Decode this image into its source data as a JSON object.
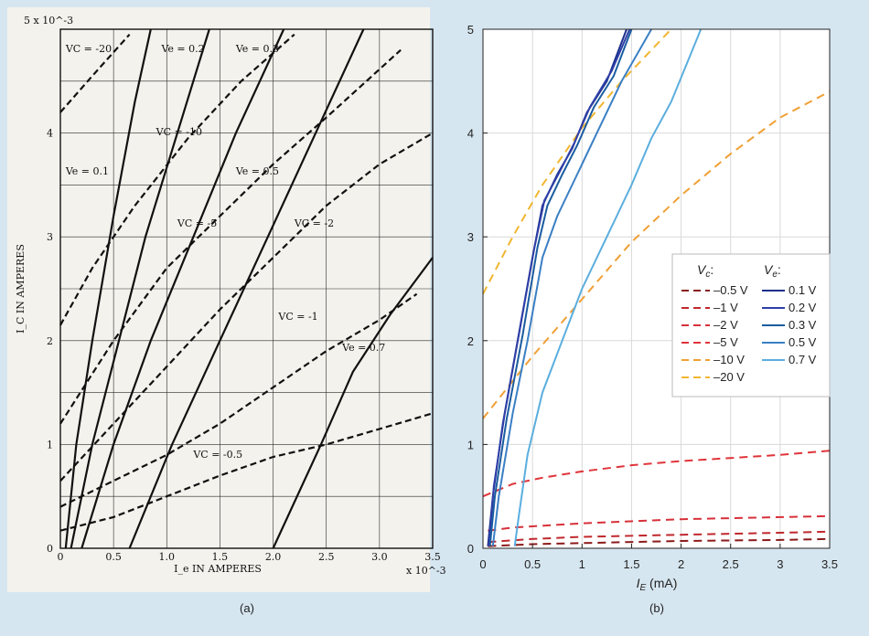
{
  "captions": {
    "a": "(a)",
    "b": "(b)"
  },
  "chart_data": [
    {
      "panel": "a",
      "type": "line",
      "xlabel": "I_e IN AMPERES",
      "ylabel": "I_C IN AMPERES",
      "x_scale_label": "x 10^-3",
      "y_scale_label": "5 x 10^-3",
      "xlim": [
        0,
        3.5
      ],
      "ylim": [
        0,
        5
      ],
      "x_ticks": [
        "0",
        "0.5",
        "1.0",
        "1.5",
        "2.0",
        "2.5",
        "3.0",
        "3.5"
      ],
      "y_ticks": [
        "0",
        "1",
        "2",
        "3",
        "4"
      ],
      "grid": true,
      "series": [
        {
          "name": "Ve = 0.1",
          "style": "solid",
          "color": "#111111",
          "points": [
            [
              0.05,
              0
            ],
            [
              0.15,
              1.0
            ],
            [
              0.3,
              2.0
            ],
            [
              0.5,
              3.2
            ],
            [
              0.7,
              4.3
            ],
            [
              0.85,
              5.0
            ]
          ]
        },
        {
          "name": "Ve = 0.2",
          "style": "solid",
          "color": "#111111",
          "points": [
            [
              0.1,
              0
            ],
            [
              0.3,
              1.0
            ],
            [
              0.55,
              2.0
            ],
            [
              0.8,
              3.0
            ],
            [
              1.1,
              4.0
            ],
            [
              1.4,
              5.0
            ]
          ]
        },
        {
          "name": "Ve = 0.3",
          "style": "solid",
          "color": "#111111",
          "points": [
            [
              0.2,
              0
            ],
            [
              0.5,
              1.0
            ],
            [
              0.85,
              2.0
            ],
            [
              1.25,
              3.0
            ],
            [
              1.65,
              4.0
            ],
            [
              2.1,
              5.0
            ]
          ]
        },
        {
          "name": "Ve = 0.5",
          "style": "solid",
          "color": "#111111",
          "points": [
            [
              0.65,
              0
            ],
            [
              1.05,
              1.0
            ],
            [
              1.5,
              2.0
            ],
            [
              1.95,
              3.0
            ],
            [
              2.4,
              4.0
            ],
            [
              2.85,
              5.0
            ]
          ]
        },
        {
          "name": "Ve = 0.7",
          "style": "solid",
          "color": "#111111",
          "points": [
            [
              2.0,
              0
            ],
            [
              2.45,
              1.0
            ],
            [
              2.75,
              1.7
            ],
            [
              3.1,
              2.25
            ],
            [
              3.5,
              2.8
            ]
          ]
        },
        {
          "name": "Vc = -20",
          "style": "dashed",
          "color": "#111111",
          "points": [
            [
              0,
              4.2
            ],
            [
              0.3,
              4.55
            ],
            [
              0.65,
              4.95
            ]
          ]
        },
        {
          "name": "Vc = -10",
          "style": "dashed",
          "color": "#111111",
          "points": [
            [
              0,
              2.15
            ],
            [
              0.3,
              2.7
            ],
            [
              0.7,
              3.3
            ],
            [
              1.2,
              3.95
            ],
            [
              1.7,
              4.5
            ],
            [
              2.2,
              4.95
            ]
          ]
        },
        {
          "name": "Vc = -5",
          "style": "dashed",
          "color": "#111111",
          "points": [
            [
              0,
              1.2
            ],
            [
              0.5,
              2.0
            ],
            [
              1.0,
              2.7
            ],
            [
              1.5,
              3.2
            ],
            [
              2.0,
              3.7
            ],
            [
              2.5,
              4.15
            ],
            [
              3.2,
              4.8
            ]
          ]
        },
        {
          "name": "Vc = -2",
          "style": "dashed",
          "color": "#111111",
          "points": [
            [
              0,
              0.65
            ],
            [
              0.5,
              1.2
            ],
            [
              1.0,
              1.75
            ],
            [
              1.5,
              2.3
            ],
            [
              2.0,
              2.8
            ],
            [
              2.5,
              3.3
            ],
            [
              3.0,
              3.7
            ],
            [
              3.5,
              4.0
            ]
          ]
        },
        {
          "name": "Vc = -1",
          "style": "dashed",
          "color": "#111111",
          "points": [
            [
              0,
              0.4
            ],
            [
              0.5,
              0.65
            ],
            [
              1.0,
              0.9
            ],
            [
              1.5,
              1.2
            ],
            [
              2.0,
              1.55
            ],
            [
              2.5,
              1.9
            ],
            [
              3.0,
              2.2
            ],
            [
              3.35,
              2.45
            ]
          ]
        },
        {
          "name": "Vc = -0.5",
          "style": "dashed",
          "color": "#111111",
          "points": [
            [
              0,
              0.17
            ],
            [
              0.5,
              0.3
            ],
            [
              1.0,
              0.5
            ],
            [
              1.5,
              0.7
            ],
            [
              2.0,
              0.88
            ],
            [
              2.5,
              1.0
            ],
            [
              3.0,
              1.15
            ],
            [
              3.5,
              1.3
            ]
          ]
        }
      ],
      "annotations": [
        {
          "text": "VC = -20",
          "x": 0.05,
          "y": 4.78
        },
        {
          "text": "Ve = 0.2",
          "x": 0.95,
          "y": 4.78
        },
        {
          "text": "Ve = 0.3",
          "x": 1.65,
          "y": 4.78
        },
        {
          "text": "VC = -10",
          "x": 0.9,
          "y": 3.98
        },
        {
          "text": "Ve = 0.1",
          "x": 0.05,
          "y": 3.6
        },
        {
          "text": "Ve = 0.5",
          "x": 1.65,
          "y": 3.6
        },
        {
          "text": "VC = -5",
          "x": 1.1,
          "y": 3.1
        },
        {
          "text": "VC = -2",
          "x": 2.2,
          "y": 3.1
        },
        {
          "text": "VC = -1",
          "x": 2.05,
          "y": 2.2
        },
        {
          "text": "Ve = 0.7",
          "x": 2.65,
          "y": 1.9
        },
        {
          "text": "VC = -0.5",
          "x": 1.25,
          "y": 0.87
        }
      ]
    },
    {
      "panel": "b",
      "type": "line",
      "xlabel": "I_E (mA)",
      "ylabel": "",
      "xlim": [
        0,
        3.5
      ],
      "ylim": [
        0,
        5
      ],
      "x_ticks": [
        "0",
        "0.5",
        "1",
        "1.5",
        "2",
        "2.5",
        "3",
        "3.5"
      ],
      "y_ticks": [
        "0",
        "1",
        "2",
        "3",
        "4",
        "5"
      ],
      "grid": true,
      "legend": {
        "position": "right",
        "vc_header": "V_c:",
        "ve_header": "V_e:",
        "vc_entries": [
          {
            "label": "–0.5 V",
            "color": "#8b1a1a"
          },
          {
            "label": "–1 V",
            "color": "#c0282d"
          },
          {
            "label": "–2 V",
            "color": "#d7303a"
          },
          {
            "label": "–5 V",
            "color": "#e0343a"
          },
          {
            "label": "–10 V",
            "color": "#f0a035"
          },
          {
            "label": "–20 V",
            "color": "#f1b630"
          }
        ],
        "ve_entries": [
          {
            "label": "0.1 V",
            "color": "#1b2f8a"
          },
          {
            "label": "0.2 V",
            "color": "#2f3fa8"
          },
          {
            "label": "0.3 V",
            "color": "#1a5c9f"
          },
          {
            "label": "0.5 V",
            "color": "#3a7fc4"
          },
          {
            "label": "0.7 V",
            "color": "#5aaede"
          }
        ]
      },
      "series": [
        {
          "name": "Vc –0.5 V",
          "style": "dashed",
          "color": "#8b1a1a",
          "points": [
            [
              0.05,
              0.02
            ],
            [
              0.5,
              0.04
            ],
            [
              1,
              0.05
            ],
            [
              2,
              0.07
            ],
            [
              3,
              0.08
            ],
            [
              3.5,
              0.09
            ]
          ]
        },
        {
          "name": "Vc –1 V",
          "style": "dashed",
          "color": "#c0282d",
          "points": [
            [
              0.05,
              0.06
            ],
            [
              0.5,
              0.09
            ],
            [
              1,
              0.11
            ],
            [
              2,
              0.13
            ],
            [
              3,
              0.15
            ],
            [
              3.5,
              0.16
            ]
          ]
        },
        {
          "name": "Vc –2 V",
          "style": "dashed",
          "color": "#d7303a",
          "points": [
            [
              0.05,
              0.17
            ],
            [
              0.3,
              0.2
            ],
            [
              1,
              0.24
            ],
            [
              2,
              0.28
            ],
            [
              3,
              0.3
            ],
            [
              3.5,
              0.31
            ]
          ]
        },
        {
          "name": "Vc –5 V",
          "style": "dashed",
          "color": "#e0343a",
          "points": [
            [
              0,
              0.5
            ],
            [
              0.3,
              0.62
            ],
            [
              0.6,
              0.68
            ],
            [
              1,
              0.74
            ],
            [
              1.5,
              0.8
            ],
            [
              2,
              0.84
            ],
            [
              2.5,
              0.87
            ],
            [
              3,
              0.9
            ],
            [
              3.5,
              0.94
            ]
          ]
        },
        {
          "name": "Vc –10 V",
          "style": "dashed",
          "color": "#f0a035",
          "points": [
            [
              0,
              1.25
            ],
            [
              0.5,
              1.85
            ],
            [
              1,
              2.4
            ],
            [
              1.5,
              2.95
            ],
            [
              2,
              3.4
            ],
            [
              2.5,
              3.8
            ],
            [
              3,
              4.15
            ],
            [
              3.5,
              4.4
            ]
          ]
        },
        {
          "name": "Vc –20 V",
          "style": "dashed",
          "color": "#f1b630",
          "points": [
            [
              0,
              2.45
            ],
            [
              0.3,
              3.0
            ],
            [
              0.6,
              3.5
            ],
            [
              1,
              4.05
            ],
            [
              1.4,
              4.5
            ],
            [
              1.9,
              5.0
            ]
          ]
        },
        {
          "name": "Ve 0.1 V",
          "style": "solid",
          "color": "#1b2f8a",
          "points": [
            [
              0.05,
              0.02
            ],
            [
              0.1,
              0.5
            ],
            [
              0.2,
              1.2
            ],
            [
              0.35,
              2.0
            ],
            [
              0.5,
              2.8
            ],
            [
              0.6,
              3.3
            ],
            [
              0.75,
              3.6
            ],
            [
              0.9,
              3.85
            ],
            [
              1.05,
              4.2
            ],
            [
              1.25,
              4.5
            ],
            [
              1.45,
              5.0
            ]
          ]
        },
        {
          "name": "Ve 0.2 V",
          "style": "solid",
          "color": "#2f3fa8",
          "points": [
            [
              0.06,
              0.02
            ],
            [
              0.11,
              0.6
            ],
            [
              0.22,
              1.3
            ],
            [
              0.37,
              2.1
            ],
            [
              0.52,
              2.9
            ],
            [
              0.62,
              3.35
            ],
            [
              0.77,
              3.62
            ],
            [
              0.92,
              3.9
            ],
            [
              1.08,
              4.25
            ],
            [
              1.3,
              4.6
            ],
            [
              1.48,
              5.0
            ]
          ]
        },
        {
          "name": "Ve 0.3 V",
          "style": "solid",
          "color": "#1a5c9f",
          "points": [
            [
              0.07,
              0.02
            ],
            [
              0.12,
              0.5
            ],
            [
              0.24,
              1.25
            ],
            [
              0.4,
              2.05
            ],
            [
              0.55,
              2.9
            ],
            [
              0.65,
              3.3
            ],
            [
              0.8,
              3.6
            ],
            [
              0.95,
              3.88
            ],
            [
              1.12,
              4.25
            ],
            [
              1.32,
              4.55
            ],
            [
              1.5,
              5.0
            ]
          ]
        },
        {
          "name": "Ve 0.5 V",
          "style": "solid",
          "color": "#3a7fc4",
          "points": [
            [
              0.1,
              0.02
            ],
            [
              0.16,
              0.5
            ],
            [
              0.3,
              1.3
            ],
            [
              0.45,
              2.0
            ],
            [
              0.6,
              2.8
            ],
            [
              0.75,
              3.2
            ],
            [
              0.95,
              3.6
            ],
            [
              1.15,
              4.0
            ],
            [
              1.4,
              4.5
            ],
            [
              1.7,
              5.0
            ]
          ]
        },
        {
          "name": "Ve 0.7 V",
          "style": "solid",
          "color": "#5aaede",
          "points": [
            [
              0.32,
              0.02
            ],
            [
              0.36,
              0.3
            ],
            [
              0.45,
              0.9
            ],
            [
              0.6,
              1.5
            ],
            [
              0.8,
              2.0
            ],
            [
              1.0,
              2.5
            ],
            [
              1.25,
              3.0
            ],
            [
              1.5,
              3.5
            ],
            [
              1.7,
              3.95
            ],
            [
              1.9,
              4.3
            ],
            [
              2.05,
              4.65
            ],
            [
              2.2,
              5.0
            ]
          ]
        }
      ]
    }
  ]
}
